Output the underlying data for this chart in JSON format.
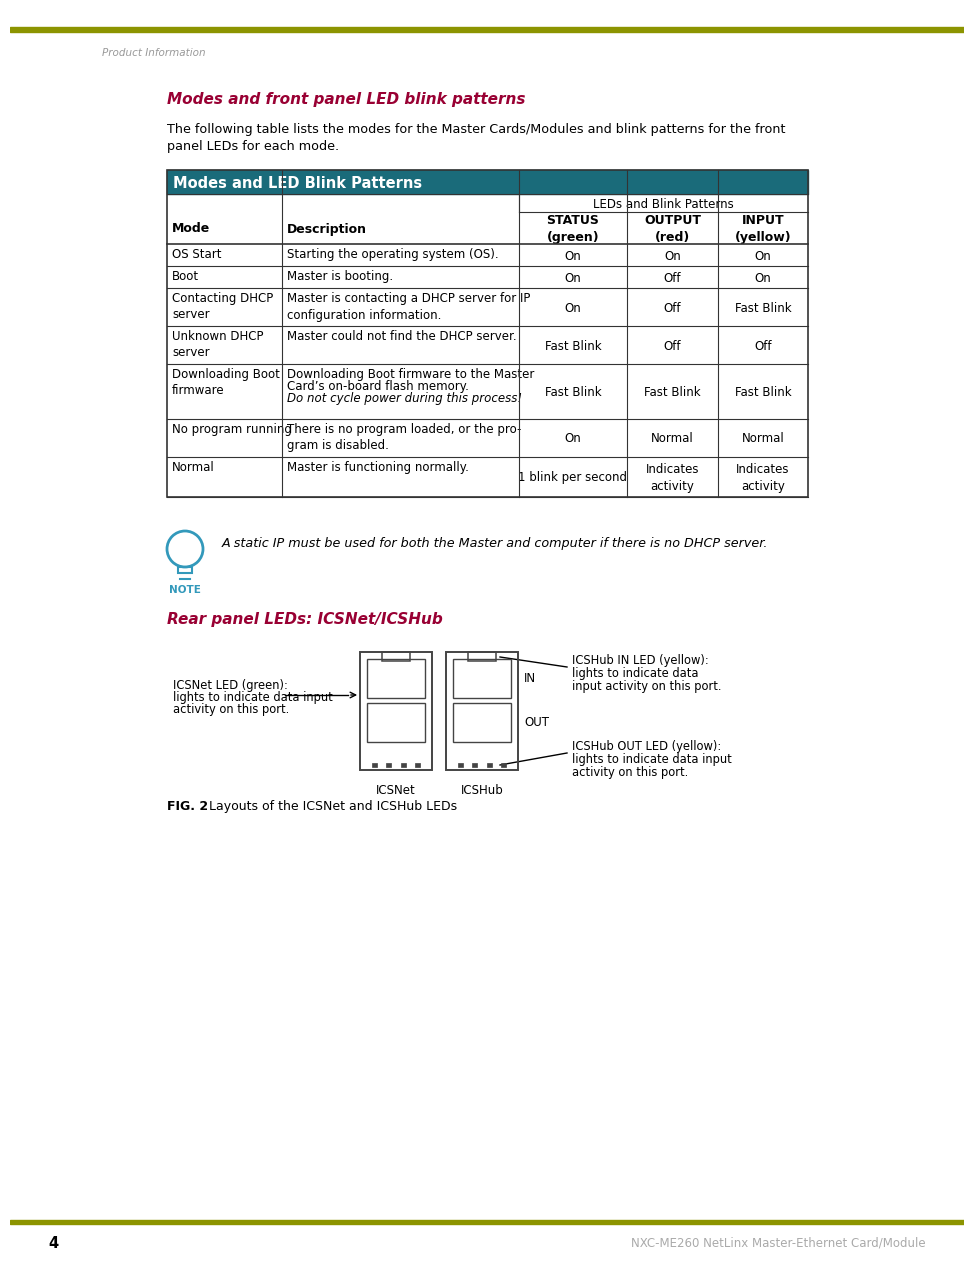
{
  "page_title": "Product Information",
  "top_bar_color": "#8c9400",
  "section1_title": "Modes and front panel LED blink patterns",
  "section1_title_color": "#990033",
  "intro_text1": "The following table lists the modes for the Master Cards/Modules and blink patterns for the front",
  "intro_text2": "panel LEDs for each mode.",
  "table_header_bg": "#1a6b7a",
  "table_header_text": "Modes and LED Blink Patterns",
  "table_header_text_color": "#ffffff",
  "table_border_color": "#333333",
  "span_header": "LEDs and Blink Patterns",
  "col_header0": "Mode",
  "col_header1": "Description",
  "col_header2": "STATUS\n(green)",
  "col_header3": "OUTPUT\n(red)",
  "col_header4": "INPUT\n(yellow)",
  "rows": [
    [
      "OS Start",
      "Starting the operating system (OS).",
      "On",
      "On",
      "On"
    ],
    [
      "Boot",
      "Master is booting.",
      "On",
      "Off",
      "On"
    ],
    [
      "Contacting DHCP\nserver",
      "Master is contacting a DHCP server for IP\nconfiguration information.",
      "On",
      "Off",
      "Fast Blink"
    ],
    [
      "Unknown DHCP\nserver",
      "Master could not find the DHCP server.",
      "Fast Blink",
      "Off",
      "Off"
    ],
    [
      "Downloading Boot\nfirmware",
      "Downloading Boot firmware to the Master\nCard’s on-board flash memory.\nDo not cycle power during this process!",
      "Fast Blink",
      "Fast Blink",
      "Fast Blink"
    ],
    [
      "No program running",
      "There is no program loaded, or the pro-\ngram is disabled.",
      "On",
      "Normal",
      "Normal"
    ],
    [
      "Normal",
      "Master is functioning normally.",
      "1 blink per second",
      "Indicates\nactivity",
      "Indicates\nactivity"
    ]
  ],
  "note_text": "A static IP must be used for both the Master and computer if there is no DHCP server.",
  "note_color": "#3399bb",
  "section2_title": "Rear panel LEDs: ICSNet/ICSHub",
  "section2_title_color": "#990033",
  "icsnet_label_line1": "ICSNet LED (green):",
  "icsnet_label_line2": "lights to indicate data input",
  "icsnet_label_line3": "activity on this port.",
  "icshub_in_line1": "ICSHub IN LED (yellow):",
  "icshub_in_line2": "lights to indicate data",
  "icshub_in_line3": "input activity on this port.",
  "icshub_out_line1": "ICSHub OUT LED (yellow):",
  "icshub_out_line2": "lights to indicate data input",
  "icshub_out_line3": "activity on this port.",
  "fig_bold": "FIG. 2",
  "fig_rest": "  Layouts of the ICSNet and ICSHub LEDs",
  "footer_text": "NXC-ME260 NetLinx Master-Ethernet Card/Module",
  "page_number": "4",
  "footer_bar_color": "#8c9400",
  "bg_color": "#ffffff",
  "text_color": "#000000"
}
